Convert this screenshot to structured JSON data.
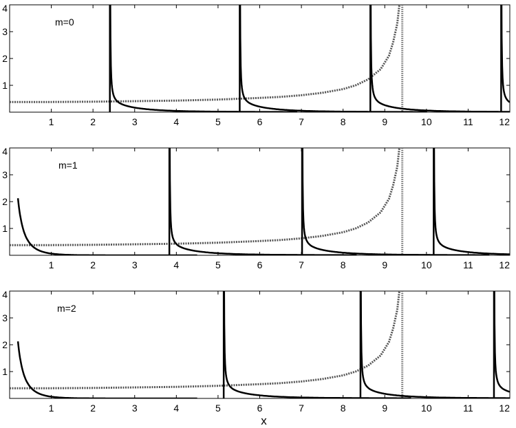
{
  "figure": {
    "xlabel": "x"
  },
  "chart_data": [
    {
      "type": "line",
      "label": "m=0",
      "xlim": [
        0,
        12
      ],
      "ylim": [
        0,
        4
      ],
      "xticks": [
        1,
        2,
        3,
        4,
        5,
        6,
        7,
        8,
        9,
        10,
        11,
        12
      ],
      "yticks": [
        1,
        2,
        3,
        4
      ],
      "xlabel": "",
      "poles": [
        2.405,
        5.52,
        8.654,
        11.792
      ],
      "asymptote_x": 9.42,
      "reference_curve": {
        "x": [
          0,
          1,
          2,
          3,
          4,
          5,
          6,
          6.5,
          7,
          7.5,
          8,
          8.3,
          8.6,
          8.9,
          9.1,
          9.2,
          9.3,
          9.35
        ],
        "y": [
          0.38,
          0.38,
          0.39,
          0.41,
          0.43,
          0.47,
          0.53,
          0.57,
          0.63,
          0.72,
          0.86,
          1.0,
          1.22,
          1.6,
          2.1,
          2.6,
          3.3,
          4.0
        ]
      }
    },
    {
      "type": "line",
      "label": "m=1",
      "xlim": [
        0,
        12
      ],
      "ylim": [
        0,
        4
      ],
      "xticks": [
        1,
        2,
        3,
        4,
        5,
        6,
        7,
        8,
        9,
        10,
        11,
        12
      ],
      "yticks": [
        1,
        2,
        3,
        4
      ],
      "xlabel": "",
      "poles": [
        0,
        3.832,
        7.016,
        10.173
      ],
      "asymptote_x": 9.42,
      "reference_curve": {
        "x": [
          0,
          1,
          2,
          3,
          4,
          5,
          6,
          6.5,
          7,
          7.5,
          8,
          8.3,
          8.6,
          8.9,
          9.1,
          9.2,
          9.3,
          9.35
        ],
        "y": [
          0.38,
          0.38,
          0.39,
          0.41,
          0.43,
          0.47,
          0.53,
          0.57,
          0.63,
          0.72,
          0.86,
          1.0,
          1.22,
          1.6,
          2.1,
          2.6,
          3.3,
          4.0
        ]
      }
    },
    {
      "type": "line",
      "label": "m=2",
      "xlim": [
        0,
        12
      ],
      "ylim": [
        0,
        4
      ],
      "xticks": [
        1,
        2,
        3,
        4,
        5,
        6,
        7,
        8,
        9,
        10,
        11,
        12
      ],
      "yticks": [
        1,
        2,
        3,
        4
      ],
      "xlabel": "x",
      "poles": [
        0,
        5.136,
        8.417,
        11.62
      ],
      "asymptote_x": 9.42,
      "reference_curve": {
        "x": [
          0,
          1,
          2,
          3,
          4,
          5,
          6,
          6.5,
          7,
          7.5,
          8,
          8.3,
          8.6,
          8.9,
          9.1,
          9.2,
          9.3,
          9.35
        ],
        "y": [
          0.38,
          0.38,
          0.39,
          0.41,
          0.43,
          0.47,
          0.53,
          0.57,
          0.63,
          0.72,
          0.86,
          1.0,
          1.22,
          1.6,
          2.1,
          2.6,
          3.3,
          4.0
        ]
      }
    }
  ]
}
